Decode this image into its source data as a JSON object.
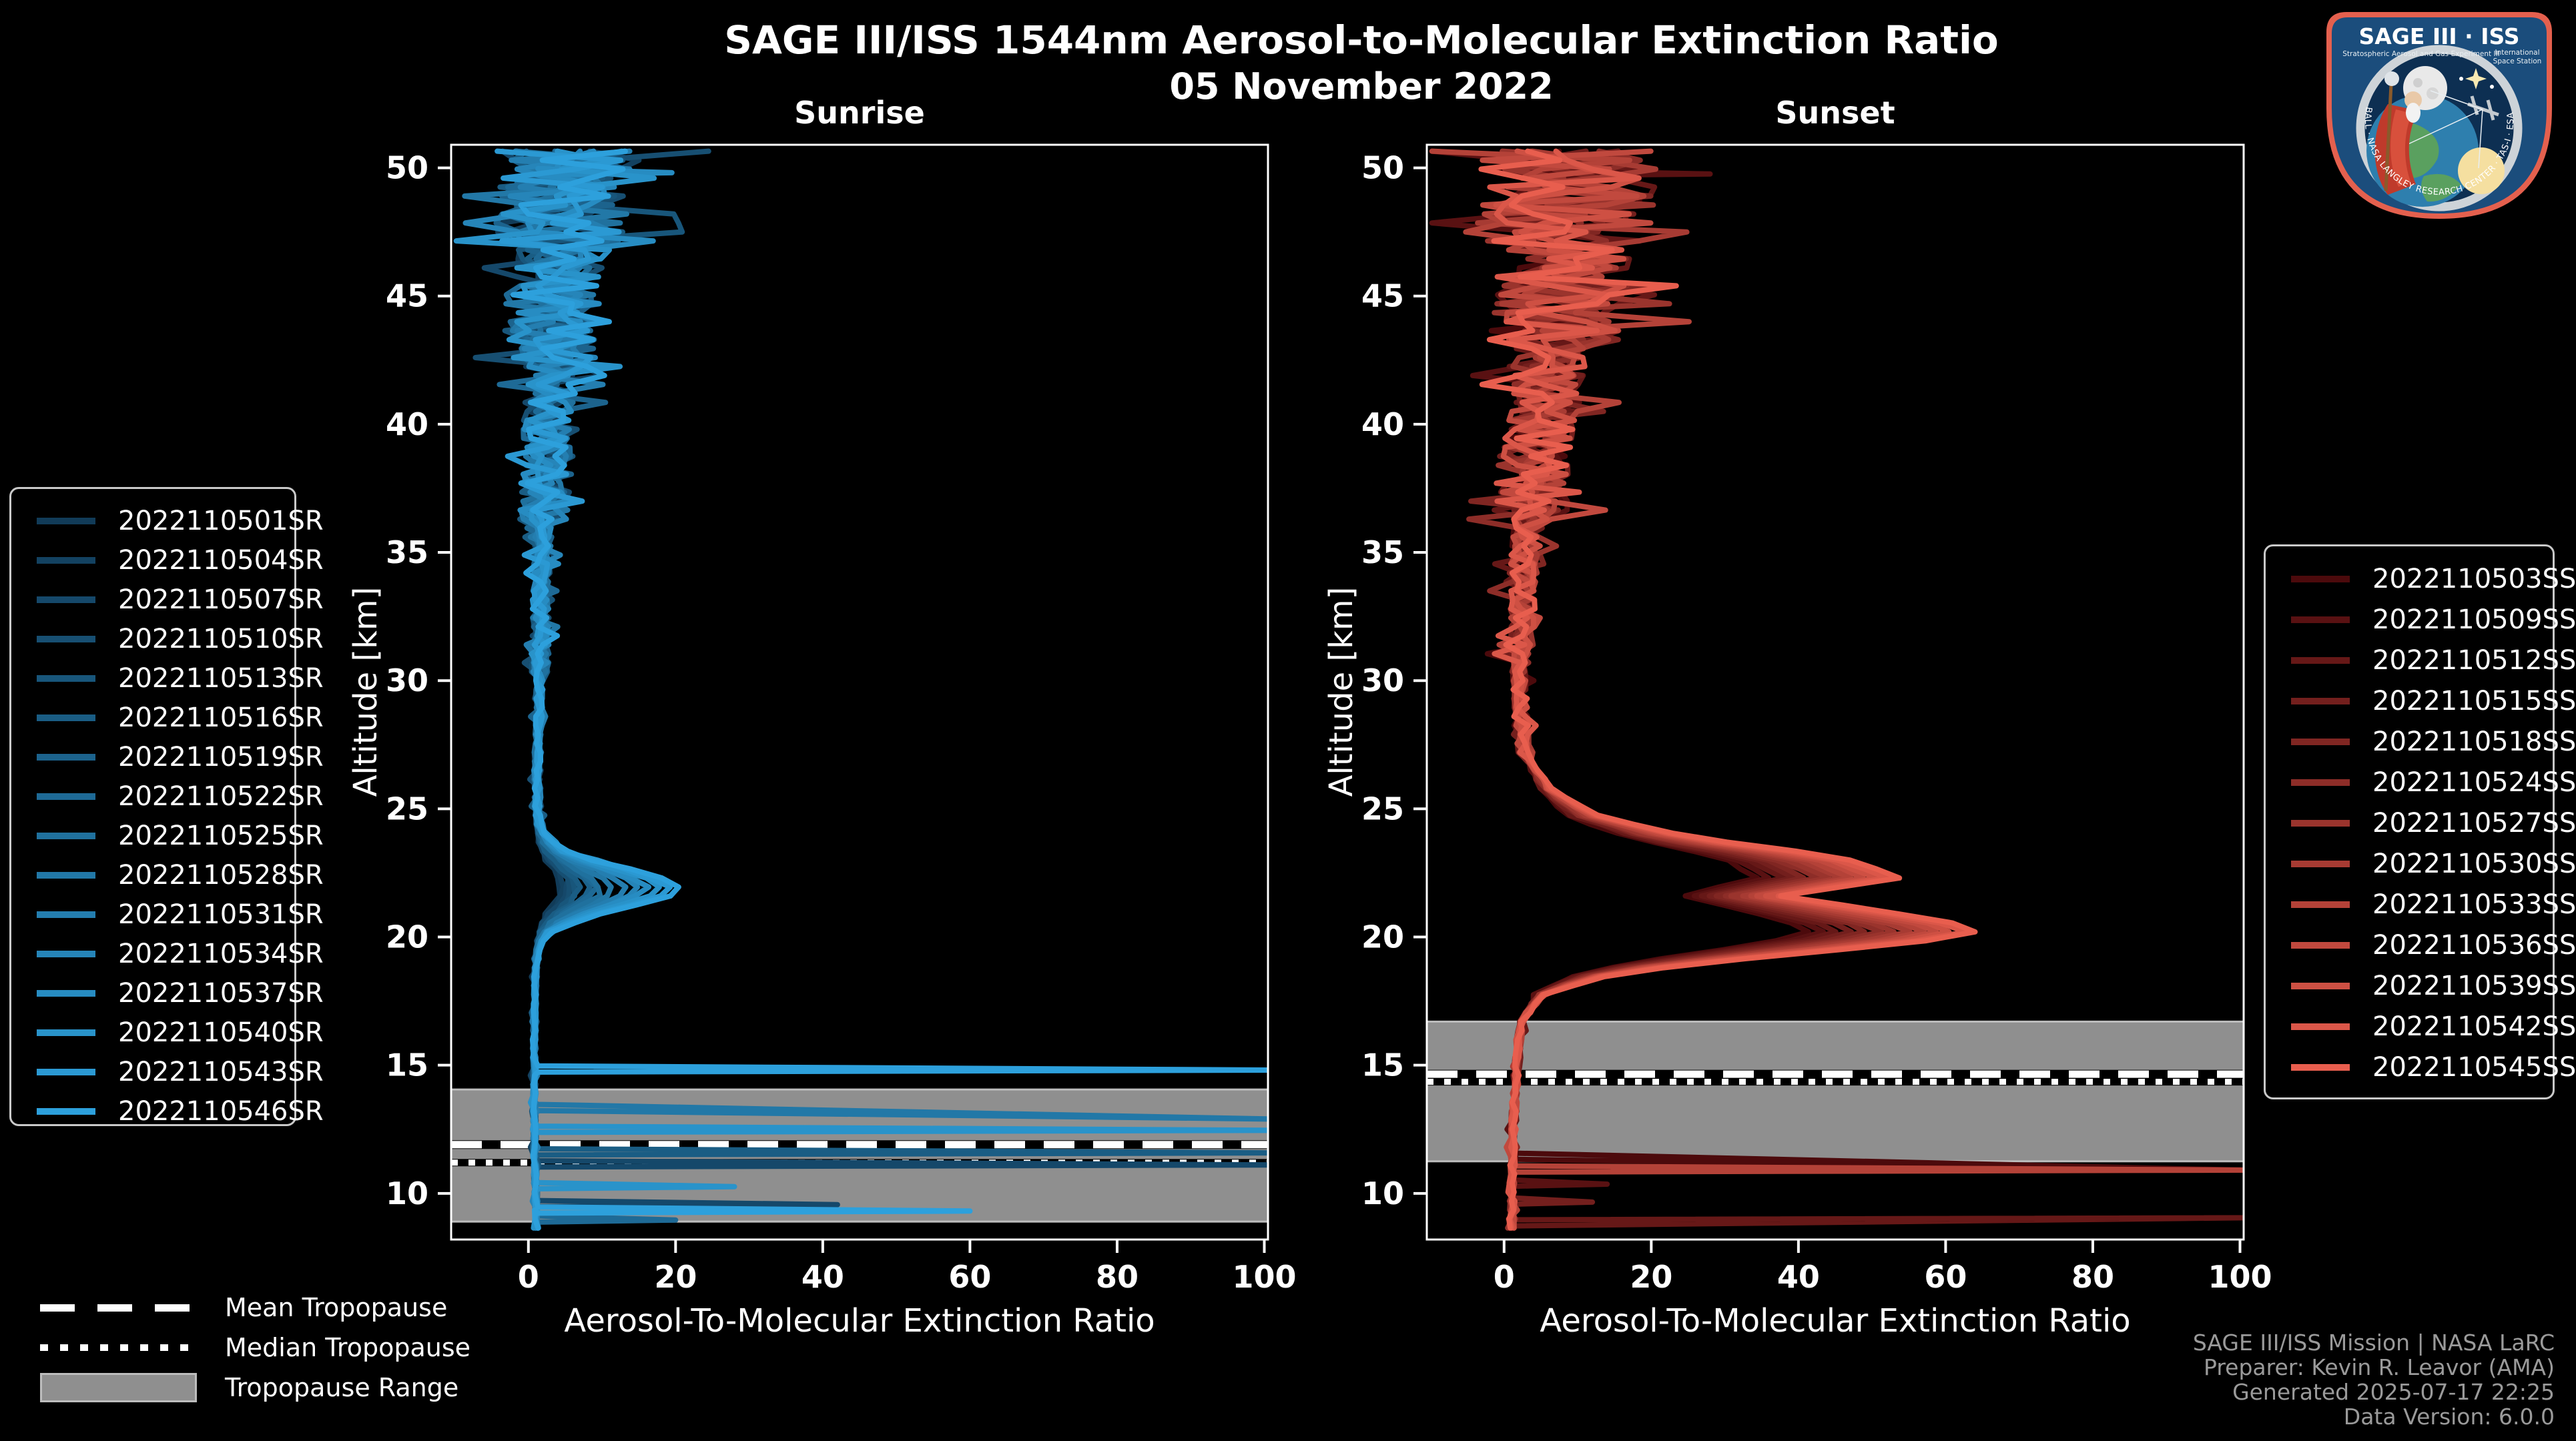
{
  "header": {
    "title": "SAGE III/ISS 1544nm Aerosol-to-Molecular Extinction Ratio",
    "date": "05 November 2022"
  },
  "chart_data": [
    {
      "key": "sunrise",
      "type": "line",
      "title": "Sunrise",
      "xlabel": "Aerosol-To-Molecular Extinction Ratio",
      "ylabel": "Altitude [km]",
      "xlim": [
        -10.5,
        100.5
      ],
      "ylim": [
        8.2,
        50.9
      ],
      "xticks": [
        0,
        20,
        40,
        60,
        80,
        100
      ],
      "yticks": [
        10,
        15,
        20,
        25,
        30,
        35,
        40,
        45,
        50
      ],
      "grid": false,
      "legend_position": "outside-left",
      "tropopause": {
        "mean_km": 11.9,
        "median_km": 11.2,
        "range_km": [
          8.9,
          14.05
        ]
      },
      "base_profile": [
        [
          8.2,
          1.2
        ],
        [
          10,
          1.0
        ],
        [
          12,
          0.8
        ],
        [
          14,
          0.8
        ],
        [
          16,
          0.8
        ],
        [
          18,
          0.9
        ],
        [
          20,
          1.2
        ],
        [
          23.5,
          1.6
        ],
        [
          26,
          1.2
        ],
        [
          30,
          1.5
        ],
        [
          34,
          1.8
        ],
        [
          38,
          2.5
        ],
        [
          42,
          3.0
        ],
        [
          46,
          4.0
        ],
        [
          50.9,
          5.0
        ]
      ],
      "enhancement": {
        "kind": "gaussian",
        "center_km": 21.9,
        "sigma_km": 0.8
      },
      "noise_bands": [
        [
          8.2,
          20,
          0.25
        ],
        [
          20,
          30,
          0.5
        ],
        [
          30,
          36,
          1.2
        ],
        [
          36,
          42,
          3.5
        ],
        [
          42,
          47,
          6
        ],
        [
          47,
          50.9,
          9
        ]
      ],
      "series": [
        {
          "name": "2022110501SR",
          "color": "#113b58",
          "peak": 3.0,
          "seed": 101,
          "features": []
        },
        {
          "name": "2022110504SR",
          "color": "#134261",
          "peak": 3.5,
          "seed": 102,
          "features": []
        },
        {
          "name": "2022110507SR",
          "color": "#15486a",
          "peak": 4.0,
          "seed": 103,
          "features": [
            {
              "alt_km": 11.15,
              "to_ratio": 101
            },
            {
              "alt_km": 9.6,
              "to_ratio": 42
            }
          ]
        },
        {
          "name": "2022110510SR",
          "color": "#174f72",
          "peak": 4.5,
          "seed": 104,
          "features": []
        },
        {
          "name": "2022110513SR",
          "color": "#18567b",
          "peak": 5.0,
          "seed": 105,
          "features": []
        },
        {
          "name": "2022110516SR",
          "color": "#1a5d84",
          "peak": 5.5,
          "seed": 106,
          "features": [
            {
              "alt_km": 11.62,
              "to_ratio": 101
            }
          ]
        },
        {
          "name": "2022110519SR",
          "color": "#1c638d",
          "peak": 6.5,
          "seed": 107,
          "features": []
        },
        {
          "name": "2022110522SR",
          "color": "#1e6a96",
          "peak": 7.5,
          "seed": 108,
          "features": [
            {
              "alt_km": 9.0,
              "to_ratio": 20
            }
          ]
        },
        {
          "name": "2022110525SR",
          "color": "#20719e",
          "peak": 8.5,
          "seed": 109,
          "features": []
        },
        {
          "name": "2022110528SR",
          "color": "#2278a7",
          "peak": 10.0,
          "seed": 110,
          "features": [
            {
              "alt_km": 13.35,
              "to_ratio": 101,
              "end_alt_km": 12.9
            }
          ]
        },
        {
          "name": "2022110531SR",
          "color": "#247eb0",
          "peak": 11.5,
          "seed": 111,
          "features": []
        },
        {
          "name": "2022110534SR",
          "color": "#2685b9",
          "peak": 13.0,
          "seed": 112,
          "features": []
        },
        {
          "name": "2022110537SR",
          "color": "#278cc2",
          "peak": 14.5,
          "seed": 113,
          "features": [
            {
              "alt_km": 49.85,
              "to_ratio": 19.5
            }
          ]
        },
        {
          "name": "2022110540SR",
          "color": "#2993ca",
          "peak": 16.0,
          "seed": 114,
          "features": [
            {
              "alt_km": 12.5,
              "to_ratio": 101
            },
            {
              "alt_km": 10.3,
              "to_ratio": 28
            }
          ]
        },
        {
          "name": "2022110543SR",
          "color": "#2b99d3",
          "peak": 17.5,
          "seed": 115,
          "features": []
        },
        {
          "name": "2022110546SR",
          "color": "#2da0dc",
          "peak": 19.0,
          "seed": 116,
          "features": [
            {
              "alt_km": 14.85,
              "to_ratio": 101
            },
            {
              "alt_km": 9.35,
              "to_ratio": 60
            }
          ]
        }
      ]
    },
    {
      "key": "sunset",
      "type": "line",
      "title": "Sunset",
      "xlabel": "Aerosol-To-Molecular Extinction Ratio",
      "ylabel": "Altitude [km]",
      "xlim": [
        -10.5,
        100.5
      ],
      "ylim": [
        8.2,
        50.9
      ],
      "xticks": [
        0,
        20,
        40,
        60,
        80,
        100
      ],
      "yticks": [
        10,
        15,
        20,
        25,
        30,
        35,
        40,
        45,
        50
      ],
      "grid": false,
      "legend_position": "outside-right",
      "tropopause": {
        "mean_km": 14.65,
        "median_km": 14.35,
        "range_km": [
          11.25,
          16.7
        ]
      },
      "base_profile": [
        [
          8.2,
          1.0
        ],
        [
          10,
          1.0
        ],
        [
          12,
          1.2
        ],
        [
          14,
          1.5
        ],
        [
          16,
          2.0
        ],
        [
          17,
          2.5
        ],
        [
          27.5,
          2.5
        ],
        [
          30,
          2.0
        ],
        [
          34,
          2.5
        ],
        [
          38,
          4.0
        ],
        [
          42,
          6.0
        ],
        [
          46,
          8.0
        ],
        [
          50.9,
          9.0
        ]
      ],
      "enhancement": {
        "kind": "shape",
        "shape": [
          [
            16.8,
            0
          ],
          [
            17.8,
            0.05
          ],
          [
            18.6,
            0.2
          ],
          [
            19.2,
            0.5
          ],
          [
            19.8,
            0.85
          ],
          [
            20.3,
            1.0
          ],
          [
            20.9,
            0.8
          ],
          [
            21.6,
            0.55
          ],
          [
            22.3,
            0.8
          ],
          [
            23.1,
            0.68
          ],
          [
            23.9,
            0.35
          ],
          [
            24.8,
            0.15
          ],
          [
            25.8,
            0.06
          ],
          [
            26.8,
            0.02
          ],
          [
            27.5,
            0
          ]
        ]
      },
      "noise_bands": [
        [
          8.2,
          16.5,
          0.4
        ],
        [
          27,
          31,
          1.0
        ],
        [
          31,
          36,
          2.0
        ],
        [
          36,
          43,
          5.0
        ],
        [
          43,
          47,
          9.0
        ],
        [
          47,
          50.9,
          12.0
        ]
      ],
      "series": [
        {
          "name": "2022110503SS",
          "color": "#4c0a0c",
          "peak": 40,
          "seed": 201,
          "features": [
            {
              "alt_km": 11.45,
              "to_ratio": 101,
              "end_alt_km": 10.9
            }
          ]
        },
        {
          "name": "2022110509SS",
          "color": "#591112",
          "peak": 42,
          "seed": 202,
          "features": [
            {
              "alt_km": 10.4,
              "to_ratio": 14
            },
            {
              "alt_km": 49.8,
              "to_ratio": 28
            }
          ]
        },
        {
          "name": "2022110512SS",
          "color": "#661817",
          "peak": 44,
          "seed": 203,
          "features": [
            {
              "alt_km": 8.85,
              "to_ratio": 101,
              "end_alt_km": 9.05
            }
          ]
        },
        {
          "name": "2022110515SS",
          "color": "#731f1d",
          "peak": 46,
          "seed": 204,
          "features": [
            {
              "alt_km": 9.7,
              "to_ratio": 12
            }
          ]
        },
        {
          "name": "2022110518SS",
          "color": "#802622",
          "peak": 48,
          "seed": 205,
          "features": []
        },
        {
          "name": "2022110524SS",
          "color": "#8d2d28",
          "peak": 50,
          "seed": 206,
          "features": []
        },
        {
          "name": "2022110527SS",
          "color": "#9a342d",
          "peak": 52,
          "seed": 207,
          "features": []
        },
        {
          "name": "2022110530SS",
          "color": "#a73b33",
          "peak": 54,
          "seed": 208,
          "features": []
        },
        {
          "name": "2022110533SS",
          "color": "#b44238",
          "peak": 56,
          "seed": 209,
          "features": [
            {
              "alt_km": 10.95,
              "to_ratio": 101
            }
          ]
        },
        {
          "name": "2022110536SS",
          "color": "#c1493e",
          "peak": 58,
          "seed": 210,
          "features": []
        },
        {
          "name": "2022110539SS",
          "color": "#ce5043",
          "peak": 60,
          "seed": 211,
          "features": []
        },
        {
          "name": "2022110542SS",
          "color": "#db5749",
          "peak": 62,
          "seed": 212,
          "features": []
        },
        {
          "name": "2022110545SS",
          "color": "#e85e4e",
          "peak": 64,
          "seed": 213,
          "features": []
        }
      ]
    }
  ],
  "tropopause_legend": {
    "items": [
      {
        "label": "Mean Tropopause",
        "style": "dashed-line"
      },
      {
        "label": "Median Tropopause",
        "style": "dotted-line"
      },
      {
        "label": "Tropopause Range",
        "style": "gray-box"
      }
    ]
  },
  "credit": {
    "lines": [
      "SAGE III/ISS Mission | NASA LaRC",
      "Preparer: Kevin R. Leavor (AMA)",
      "Generated 2025-07-17 22:25",
      "Data Version: 6.0.0"
    ]
  },
  "logo": {
    "title": "SAGE III · ISS",
    "subtitle": "Stratospheric Aerosol and Gas Experiment III",
    "right_line1": "International",
    "right_line2": "Space Station",
    "ring_text": "BALL · NASA LANGLEY RESEARCH CENTER · TAS-I · ESA"
  },
  "style_colors": {
    "background": "#000000",
    "frame": "#ffffff",
    "tropopause_band": "#8f8f8f",
    "credit_text": "#9a9a9a",
    "legend_border": "#c9c9c9"
  }
}
